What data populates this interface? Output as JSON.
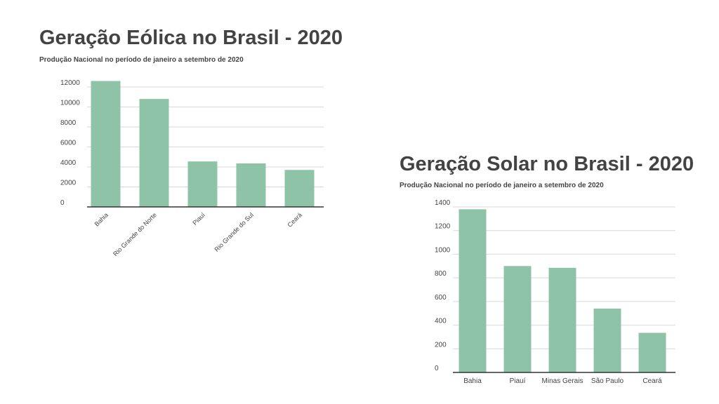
{
  "chart_data": [
    {
      "type": "bar",
      "title": "Geração Eólica no Brasil - 2020",
      "subtitle": "Produção Nacional no período de janeiro a setembro de 2020",
      "categories": [
        "Bahia",
        "Rio Grande do Norte",
        "Piauí",
        "Rio Grande do Sul",
        "Ceará"
      ],
      "values": [
        12600,
        10800,
        4550,
        4350,
        3700
      ],
      "yticks": [
        0,
        2000,
        4000,
        6000,
        8000,
        10000,
        12000
      ],
      "ylim": [
        0,
        12000
      ],
      "xlabel": "",
      "ylabel": "",
      "grid": true,
      "color": "#8fc3a7",
      "tick_label_rotation": "diagonal"
    },
    {
      "type": "bar",
      "title": "Geração Solar no Brasil - 2020",
      "subtitle": "Produção Nacional no período de janeiro a setembro de 2020",
      "categories": [
        "Bahia",
        "Piauí",
        "Minas Gerais",
        "São Paulo",
        "Ceará"
      ],
      "values": [
        1380,
        900,
        885,
        540,
        335
      ],
      "yticks": [
        0,
        200,
        400,
        600,
        800,
        1000,
        1200,
        1400
      ],
      "ylim": [
        0,
        1400
      ],
      "xlabel": "",
      "ylabel": "",
      "grid": true,
      "color": "#8fc3a7",
      "tick_label_rotation": "horizontal"
    }
  ]
}
